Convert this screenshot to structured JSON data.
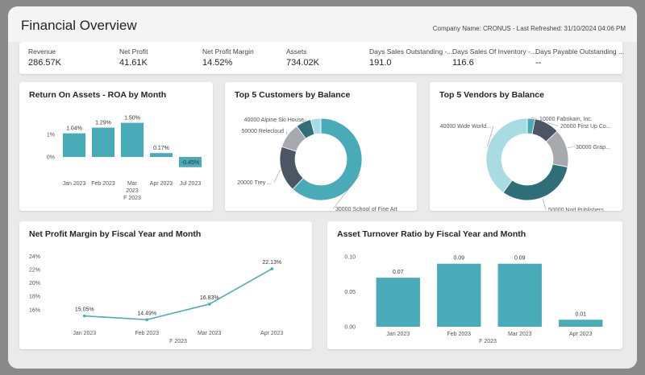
{
  "header": {
    "title": "Financial Overview",
    "company_info": "Company Name: CRONUS - Last Refreshed: 31/10/2024 04:06 PM"
  },
  "kpis": [
    {
      "label": "Revenue",
      "value": "286.57K"
    },
    {
      "label": "Net Profit",
      "value": "41.61K"
    },
    {
      "label": "Net Profit Margin",
      "value": "14.52%"
    },
    {
      "label": "Assets",
      "value": "734.02K"
    },
    {
      "label": "Days Sales Outstanding -...",
      "value": "191.0"
    },
    {
      "label": "Days Sales Of Inventory -...",
      "value": "116.6"
    },
    {
      "label": "Days Payable Outstanding ...",
      "value": "--"
    }
  ],
  "colors": {
    "teal": "#4aabb8",
    "light_teal": "#a9dbe3",
    "dark_slate": "#4b5563",
    "gray": "#a6a9ad",
    "dark_teal": "#2f6f7a",
    "page_bg": "#eaeaea",
    "card_bg": "#ffffff"
  },
  "chart_data": [
    {
      "id": "roa",
      "type": "bar",
      "title": "Return On Assets - ROA by Month",
      "categories": [
        "Jan 2023",
        "Feb 2023",
        "Mar 2023",
        "Apr 2023",
        "Jul 2023"
      ],
      "values": [
        1.04,
        1.29,
        1.5,
        0.17,
        -0.45
      ],
      "data_labels": [
        "1.04%",
        "1.29%",
        "1.50%",
        "0.17%",
        "-0.45%"
      ],
      "y_ticks": [
        "1%",
        "0%"
      ],
      "x_group_label": "F 2023",
      "ylim": [
        -0.6,
        1.7
      ]
    },
    {
      "id": "customers",
      "type": "pie",
      "donut": true,
      "title": "Top 5 Customers by Balance",
      "labels": [
        "30000 School of Fine Art",
        "20000 Trey ...",
        "50000 Relecloud",
        "40000 Alpine Ski House",
        ""
      ],
      "values": [
        62,
        18,
        10,
        6,
        4
      ],
      "colors": [
        "#4aabb8",
        "#4b5563",
        "#a6a9ad",
        "#2f6f7a",
        "#a9dbe3"
      ]
    },
    {
      "id": "vendors",
      "type": "pie",
      "donut": true,
      "title": "Top 5 Vendors by Balance",
      "labels": [
        "10000 Fabrikam, Inc.",
        "20000 First Up Co...",
        "30000 Grap...",
        "50000 Nod Publishers",
        "40000 Wide World..."
      ],
      "values": [
        3,
        10,
        15,
        32,
        40
      ],
      "colors": [
        "#4aabb8",
        "#4b5563",
        "#a6a9ad",
        "#2f6f7a",
        "#a9dbe3"
      ]
    },
    {
      "id": "npm",
      "type": "line",
      "title": "Net Profit Margin by Fiscal Year and Month",
      "categories": [
        "Jan 2023",
        "Feb 2023",
        "Mar 2023",
        "Apr 2023"
      ],
      "values": [
        15.05,
        14.49,
        16.83,
        22.13
      ],
      "data_labels": [
        "15.05%",
        "14.49%",
        "16.83%",
        "22.13%"
      ],
      "y_ticks": [
        "16%",
        "18%",
        "20%",
        "22%",
        "24%"
      ],
      "x_group_label": "F 2023",
      "ylim": [
        14.4,
        24.8
      ]
    },
    {
      "id": "atr",
      "type": "bar",
      "title": "Asset Turnover Ratio by Fiscal Year and Month",
      "categories": [
        "Jan 2023",
        "Feb 2023",
        "Mar 2023",
        "Apr 2023"
      ],
      "values": [
        0.07,
        0.09,
        0.09,
        0.01
      ],
      "data_labels": [
        "0.07",
        "0.09",
        "0.09",
        "0.01"
      ],
      "y_ticks": [
        "0.00",
        "0.05",
        "0.10"
      ],
      "x_group_label": "F 2023",
      "ylim": [
        0,
        0.1
      ]
    }
  ]
}
